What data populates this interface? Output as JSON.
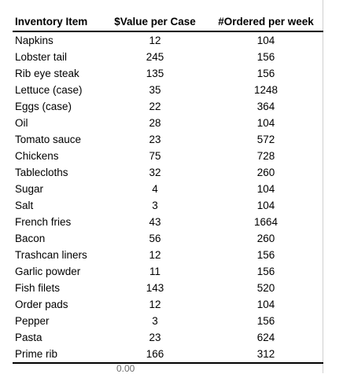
{
  "table": {
    "columns": [
      "Inventory  Item",
      "$Value per Case",
      "#Ordered per week"
    ],
    "rows": [
      {
        "item": "Napkins",
        "value": "12",
        "ordered": "104"
      },
      {
        "item": "Lobster tail",
        "value": "245",
        "ordered": "156"
      },
      {
        "item": "Rib eye steak",
        "value": "135",
        "ordered": "156"
      },
      {
        "item": "Lettuce (case)",
        "value": "35",
        "ordered": "1248"
      },
      {
        "item": "Eggs (case)",
        "value": "22",
        "ordered": "364"
      },
      {
        "item": "Oil",
        "value": "28",
        "ordered": "104"
      },
      {
        "item": "Tomato sauce",
        "value": "23",
        "ordered": "572"
      },
      {
        "item": "Chickens",
        "value": "75",
        "ordered": "728"
      },
      {
        "item": "Tablecloths",
        "value": "32",
        "ordered": "260"
      },
      {
        "item": "Sugar",
        "value": "4",
        "ordered": "104"
      },
      {
        "item": "Salt",
        "value": "3",
        "ordered": "104"
      },
      {
        "item": "French fries",
        "value": "43",
        "ordered": "1664"
      },
      {
        "item": "Bacon",
        "value": "56",
        "ordered": "260"
      },
      {
        "item": "Trashcan liners",
        "value": "12",
        "ordered": "156"
      },
      {
        "item": "Garlic powder",
        "value": "11",
        "ordered": "156"
      },
      {
        "item": "Fish filets",
        "value": "143",
        "ordered": "520"
      },
      {
        "item": "Order pads",
        "value": "12",
        "ordered": "104"
      },
      {
        "item": "Pepper",
        "value": "3",
        "ordered": "156"
      },
      {
        "item": "Pasta",
        "value": "23",
        "ordered": "624"
      },
      {
        "item": "Prime rib",
        "value": "166",
        "ordered": "312"
      }
    ]
  },
  "footer_fragment": "0.00"
}
